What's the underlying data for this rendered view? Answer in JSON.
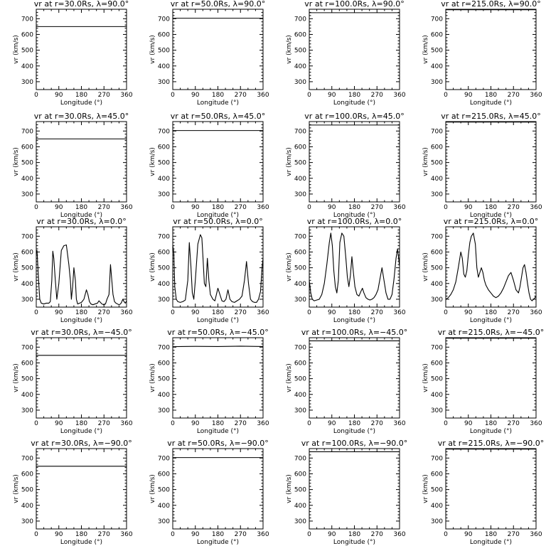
{
  "chart_data": [
    {
      "type": "line",
      "title": "vr at r=30.0Rs, λ=90.0°",
      "xlabel": "Longitude (°)",
      "ylabel": "vr (km/s)",
      "xlim": [
        0,
        360
      ],
      "ylim": [
        250,
        760
      ],
      "xticks": [
        0,
        90,
        180,
        270,
        360
      ],
      "yticks": [
        300,
        400,
        500,
        600,
        700
      ],
      "grid": false,
      "series": [
        {
          "x": [
            0,
            360
          ],
          "y": [
            650,
            650
          ]
        }
      ]
    },
    {
      "type": "line",
      "title": "vr at r=50.0Rs, λ=90.0°",
      "xlabel": "Longitude (°)",
      "ylabel": "vr (km/s)",
      "xlim": [
        0,
        360
      ],
      "ylim": [
        250,
        760
      ],
      "xticks": [
        0,
        90,
        180,
        270,
        360
      ],
      "yticks": [
        300,
        400,
        500,
        600,
        700
      ],
      "grid": false,
      "series": [
        {
          "x": [
            0,
            360
          ],
          "y": [
            703,
            703
          ]
        }
      ]
    },
    {
      "type": "line",
      "title": "vr at r=100.0Rs, λ=90.0°",
      "xlabel": "Longitude (°)",
      "ylabel": "vr (km/s)",
      "xlim": [
        0,
        360
      ],
      "ylim": [
        250,
        760
      ],
      "xticks": [
        0,
        90,
        180,
        270,
        360
      ],
      "yticks": [
        300,
        400,
        500,
        600,
        700
      ],
      "grid": false,
      "series": [
        {
          "x": [
            0,
            360
          ],
          "y": [
            738,
            738
          ]
        }
      ]
    },
    {
      "type": "line",
      "title": "vr at r=215.0Rs, λ=90.0°",
      "xlabel": "Longitude (°)",
      "ylabel": "vr (km/s)",
      "xlim": [
        0,
        360
      ],
      "ylim": [
        250,
        760
      ],
      "xticks": [
        0,
        90,
        180,
        270,
        360
      ],
      "yticks": [
        300,
        400,
        500,
        600,
        700
      ],
      "grid": false,
      "series": [
        {
          "x": [
            0,
            360
          ],
          "y": [
            757,
            757
          ]
        }
      ]
    },
    {
      "type": "line",
      "title": "vr at r=30.0Rs, λ=45.0°",
      "xlabel": "Longitude (°)",
      "ylabel": "vr (km/s)",
      "xlim": [
        0,
        360
      ],
      "ylim": [
        250,
        760
      ],
      "xticks": [
        0,
        90,
        180,
        270,
        360
      ],
      "yticks": [
        300,
        400,
        500,
        600,
        700
      ],
      "grid": false,
      "series": [
        {
          "x": [
            0,
            360
          ],
          "y": [
            650,
            650
          ]
        }
      ]
    },
    {
      "type": "line",
      "title": "vr at r=50.0Rs, λ=45.0°",
      "xlabel": "Longitude (°)",
      "ylabel": "vr (km/s)",
      "xlim": [
        0,
        360
      ],
      "ylim": [
        250,
        760
      ],
      "xticks": [
        0,
        90,
        180,
        270,
        360
      ],
      "yticks": [
        300,
        400,
        500,
        600,
        700
      ],
      "grid": false,
      "series": [
        {
          "x": [
            0,
            360
          ],
          "y": [
            703,
            703
          ]
        }
      ]
    },
    {
      "type": "line",
      "title": "vr at r=100.0Rs, λ=45.0°",
      "xlabel": "Longitude (°)",
      "ylabel": "vr (km/s)",
      "xlim": [
        0,
        360
      ],
      "ylim": [
        250,
        760
      ],
      "xticks": [
        0,
        90,
        180,
        270,
        360
      ],
      "yticks": [
        300,
        400,
        500,
        600,
        700
      ],
      "grid": false,
      "series": [
        {
          "x": [
            0,
            360
          ],
          "y": [
            738,
            738
          ]
        }
      ]
    },
    {
      "type": "line",
      "title": "vr at r=215.0Rs, λ=45.0°",
      "xlabel": "Longitude (°)",
      "ylabel": "vr (km/s)",
      "xlim": [
        0,
        360
      ],
      "ylim": [
        250,
        760
      ],
      "xticks": [
        0,
        90,
        180,
        270,
        360
      ],
      "yticks": [
        300,
        400,
        500,
        600,
        700
      ],
      "grid": false,
      "series": [
        {
          "x": [
            0,
            360
          ],
          "y": [
            757,
            757
          ]
        }
      ]
    },
    {
      "type": "line",
      "title": "vr at r=30.0Rs, λ=0.0°",
      "xlabel": "Longitude (°)",
      "ylabel": "vr (km/s)",
      "xlim": [
        0,
        360
      ],
      "ylim": [
        250,
        760
      ],
      "xticks": [
        0,
        90,
        180,
        270,
        360
      ],
      "yticks": [
        300,
        400,
        500,
        600,
        700
      ],
      "grid": false,
      "series": [
        {
          "x": [
            0,
            3,
            6,
            10,
            14,
            20,
            30,
            40,
            50,
            56,
            62,
            66,
            70,
            76,
            82,
            90,
            100,
            110,
            120,
            130,
            136,
            140,
            145,
            150,
            156,
            160,
            165,
            172,
            180,
            190,
            200,
            206,
            212,
            218,
            226,
            234,
            244,
            250,
            256,
            262,
            268,
            276,
            282,
            290,
            296,
            306,
            312,
            318,
            324,
            330,
            336,
            340,
            345,
            350,
            355,
            360
          ],
          "y": [
            590,
            610,
            520,
            400,
            300,
            275,
            270,
            275,
            275,
            285,
            420,
            605,
            560,
            420,
            300,
            400,
            610,
            640,
            645,
            520,
            420,
            300,
            380,
            500,
            420,
            300,
            270,
            275,
            280,
            300,
            360,
            330,
            285,
            270,
            265,
            270,
            275,
            290,
            280,
            270,
            265,
            270,
            300,
            330,
            520,
            330,
            285,
            275,
            270,
            265,
            270,
            280,
            300,
            285,
            275,
            290
          ]
        }
      ]
    },
    {
      "type": "line",
      "title": "vr at r=50.0Rs, λ=0.0°",
      "xlabel": "Longitude (°)",
      "ylabel": "vr (km/s)",
      "xlim": [
        0,
        360
      ],
      "ylim": [
        250,
        760
      ],
      "xticks": [
        0,
        90,
        180,
        270,
        360
      ],
      "yticks": [
        300,
        400,
        500,
        600,
        700
      ],
      "grid": false,
      "series": [
        {
          "x": [
            0,
            4,
            8,
            14,
            20,
            30,
            40,
            50,
            60,
            66,
            72,
            78,
            84,
            90,
            100,
            110,
            116,
            120,
            126,
            132,
            138,
            144,
            150,
            160,
            168,
            174,
            180,
            188,
            196,
            204,
            212,
            220,
            228,
            236,
            246,
            256,
            266,
            276,
            286,
            294,
            302,
            310,
            318,
            326,
            334,
            342,
            350,
            356,
            360
          ],
          "y": [
            640,
            600,
            380,
            300,
            285,
            280,
            285,
            295,
            420,
            660,
            520,
            340,
            300,
            420,
            650,
            710,
            690,
            580,
            400,
            380,
            560,
            420,
            330,
            300,
            290,
            330,
            370,
            330,
            290,
            285,
            300,
            360,
            300,
            285,
            280,
            290,
            300,
            320,
            420,
            540,
            400,
            300,
            285,
            280,
            280,
            300,
            350,
            500,
            560
          ]
        }
      ]
    },
    {
      "type": "line",
      "title": "vr at r=100.0Rs, λ=0.0°",
      "xlabel": "Longitude (°)",
      "ylabel": "vr (km/s)",
      "xlim": [
        0,
        360
      ],
      "ylim": [
        250,
        760
      ],
      "xticks": [
        0,
        90,
        180,
        270,
        360
      ],
      "yticks": [
        300,
        400,
        500,
        600,
        700
      ],
      "grid": false,
      "series": [
        {
          "x": [
            0,
            6,
            12,
            20,
            30,
            40,
            50,
            60,
            70,
            80,
            86,
            92,
            98,
            104,
            110,
            116,
            122,
            130,
            138,
            146,
            152,
            158,
            164,
            170,
            176,
            182,
            190,
            198,
            206,
            212,
            218,
            226,
            234,
            242,
            250,
            258,
            266,
            274,
            282,
            290,
            298,
            306,
            314,
            322,
            330,
            338,
            346,
            352,
            360
          ],
          "y": [
            420,
            340,
            300,
            290,
            295,
            300,
            330,
            400,
            520,
            660,
            720,
            640,
            480,
            380,
            340,
            420,
            660,
            720,
            700,
            560,
            440,
            380,
            450,
            570,
            470,
            380,
            330,
            320,
            350,
            370,
            340,
            310,
            300,
            295,
            300,
            310,
            330,
            360,
            430,
            500,
            420,
            340,
            300,
            300,
            330,
            430,
            560,
            620,
            510
          ]
        }
      ]
    },
    {
      "type": "line",
      "title": "vr at r=215.0Rs, λ=0.0°",
      "xlabel": "Longitude (°)",
      "ylabel": "vr (km/s)",
      "xlim": [
        0,
        360
      ],
      "ylim": [
        250,
        760
      ],
      "xticks": [
        0,
        90,
        180,
        270,
        360
      ],
      "yticks": [
        300,
        400,
        500,
        600,
        700
      ],
      "grid": false,
      "series": [
        {
          "x": [
            0,
            10,
            20,
            30,
            40,
            50,
            60,
            66,
            72,
            78,
            84,
            90,
            96,
            102,
            110,
            118,
            124,
            130,
            136,
            142,
            148,
            154,
            160,
            170,
            180,
            190,
            200,
            210,
            220,
            230,
            240,
            250,
            260,
            270,
            280,
            290,
            296,
            302,
            308,
            314,
            320,
            326,
            332,
            338,
            344,
            350,
            356,
            360
          ],
          "y": [
            300,
            310,
            330,
            360,
            410,
            500,
            600,
            560,
            460,
            440,
            480,
            580,
            660,
            700,
            720,
            650,
            500,
            440,
            470,
            500,
            470,
            420,
            390,
            360,
            340,
            320,
            310,
            320,
            340,
            370,
            410,
            450,
            470,
            420,
            360,
            340,
            380,
            440,
            500,
            520,
            470,
            400,
            340,
            300,
            290,
            300,
            310,
            320
          ]
        }
      ]
    },
    {
      "type": "line",
      "title": "vr at r=30.0Rs, λ=−45.0°",
      "xlabel": "Longitude (°)",
      "ylabel": "vr (km/s)",
      "xlim": [
        0,
        360
      ],
      "ylim": [
        250,
        760
      ],
      "xticks": [
        0,
        90,
        180,
        270,
        360
      ],
      "yticks": [
        300,
        400,
        500,
        600,
        700
      ],
      "grid": false,
      "series": [
        {
          "x": [
            0,
            360
          ],
          "y": [
            648,
            648
          ]
        }
      ]
    },
    {
      "type": "line",
      "title": "vr at r=50.0Rs, λ=−45.0°",
      "xlabel": "Longitude (°)",
      "ylabel": "vr (km/s)",
      "xlim": [
        0,
        360
      ],
      "ylim": [
        250,
        760
      ],
      "xticks": [
        0,
        90,
        180,
        270,
        360
      ],
      "yticks": [
        300,
        400,
        500,
        600,
        700
      ],
      "grid": false,
      "series": [
        {
          "x": [
            0,
            90,
            180,
            270,
            360
          ],
          "y": [
            703,
            705,
            704,
            706,
            704
          ]
        }
      ]
    },
    {
      "type": "line",
      "title": "vr at r=100.0Rs, λ=−45.0°",
      "xlabel": "Longitude (°)",
      "ylabel": "vr (km/s)",
      "xlim": [
        0,
        360
      ],
      "ylim": [
        250,
        760
      ],
      "xticks": [
        0,
        90,
        180,
        270,
        360
      ],
      "yticks": [
        300,
        400,
        500,
        600,
        700
      ],
      "grid": false,
      "series": [
        {
          "x": [
            0,
            360
          ],
          "y": [
            740,
            740
          ]
        }
      ]
    },
    {
      "type": "line",
      "title": "vr at r=215.0Rs, λ=−45.0°",
      "xlabel": "Longitude (°)",
      "ylabel": "vr (km/s)",
      "xlim": [
        0,
        360
      ],
      "ylim": [
        250,
        760
      ],
      "xticks": [
        0,
        90,
        180,
        270,
        360
      ],
      "yticks": [
        300,
        400,
        500,
        600,
        700
      ],
      "grid": false,
      "series": [
        {
          "x": [
            0,
            360
          ],
          "y": [
            757,
            757
          ]
        }
      ]
    },
    {
      "type": "line",
      "title": "vr at r=30.0Rs, λ=−90.0°",
      "xlabel": "Longitude (°)",
      "ylabel": "vr (km/s)",
      "xlim": [
        0,
        360
      ],
      "ylim": [
        250,
        760
      ],
      "xticks": [
        0,
        90,
        180,
        270,
        360
      ],
      "yticks": [
        300,
        400,
        500,
        600,
        700
      ],
      "grid": false,
      "series": [
        {
          "x": [
            0,
            360
          ],
          "y": [
            648,
            648
          ]
        }
      ]
    },
    {
      "type": "line",
      "title": "vr at r=50.0Rs, λ=−90.0°",
      "xlabel": "Longitude (°)",
      "ylabel": "vr (km/s)",
      "xlim": [
        0,
        360
      ],
      "ylim": [
        250,
        760
      ],
      "xticks": [
        0,
        90,
        180,
        270,
        360
      ],
      "yticks": [
        300,
        400,
        500,
        600,
        700
      ],
      "grid": false,
      "series": [
        {
          "x": [
            0,
            360
          ],
          "y": [
            703,
            703
          ]
        }
      ]
    },
    {
      "type": "line",
      "title": "vr at r=100.0Rs, λ=−90.0°",
      "xlabel": "Longitude (°)",
      "ylabel": "vr (km/s)",
      "xlim": [
        0,
        360
      ],
      "ylim": [
        250,
        760
      ],
      "xticks": [
        0,
        90,
        180,
        270,
        360
      ],
      "yticks": [
        300,
        400,
        500,
        600,
        700
      ],
      "grid": false,
      "series": [
        {
          "x": [
            0,
            360
          ],
          "y": [
            740,
            740
          ]
        }
      ]
    },
    {
      "type": "line",
      "title": "vr at r=215.0Rs, λ=−90.0°",
      "xlabel": "Longitude (°)",
      "ylabel": "vr (km/s)",
      "xlim": [
        0,
        360
      ],
      "ylim": [
        250,
        760
      ],
      "xticks": [
        0,
        90,
        180,
        270,
        360
      ],
      "yticks": [
        300,
        400,
        500,
        600,
        700
      ],
      "grid": false,
      "series": [
        {
          "x": [
            0,
            360
          ],
          "y": [
            757,
            757
          ]
        }
      ]
    }
  ]
}
